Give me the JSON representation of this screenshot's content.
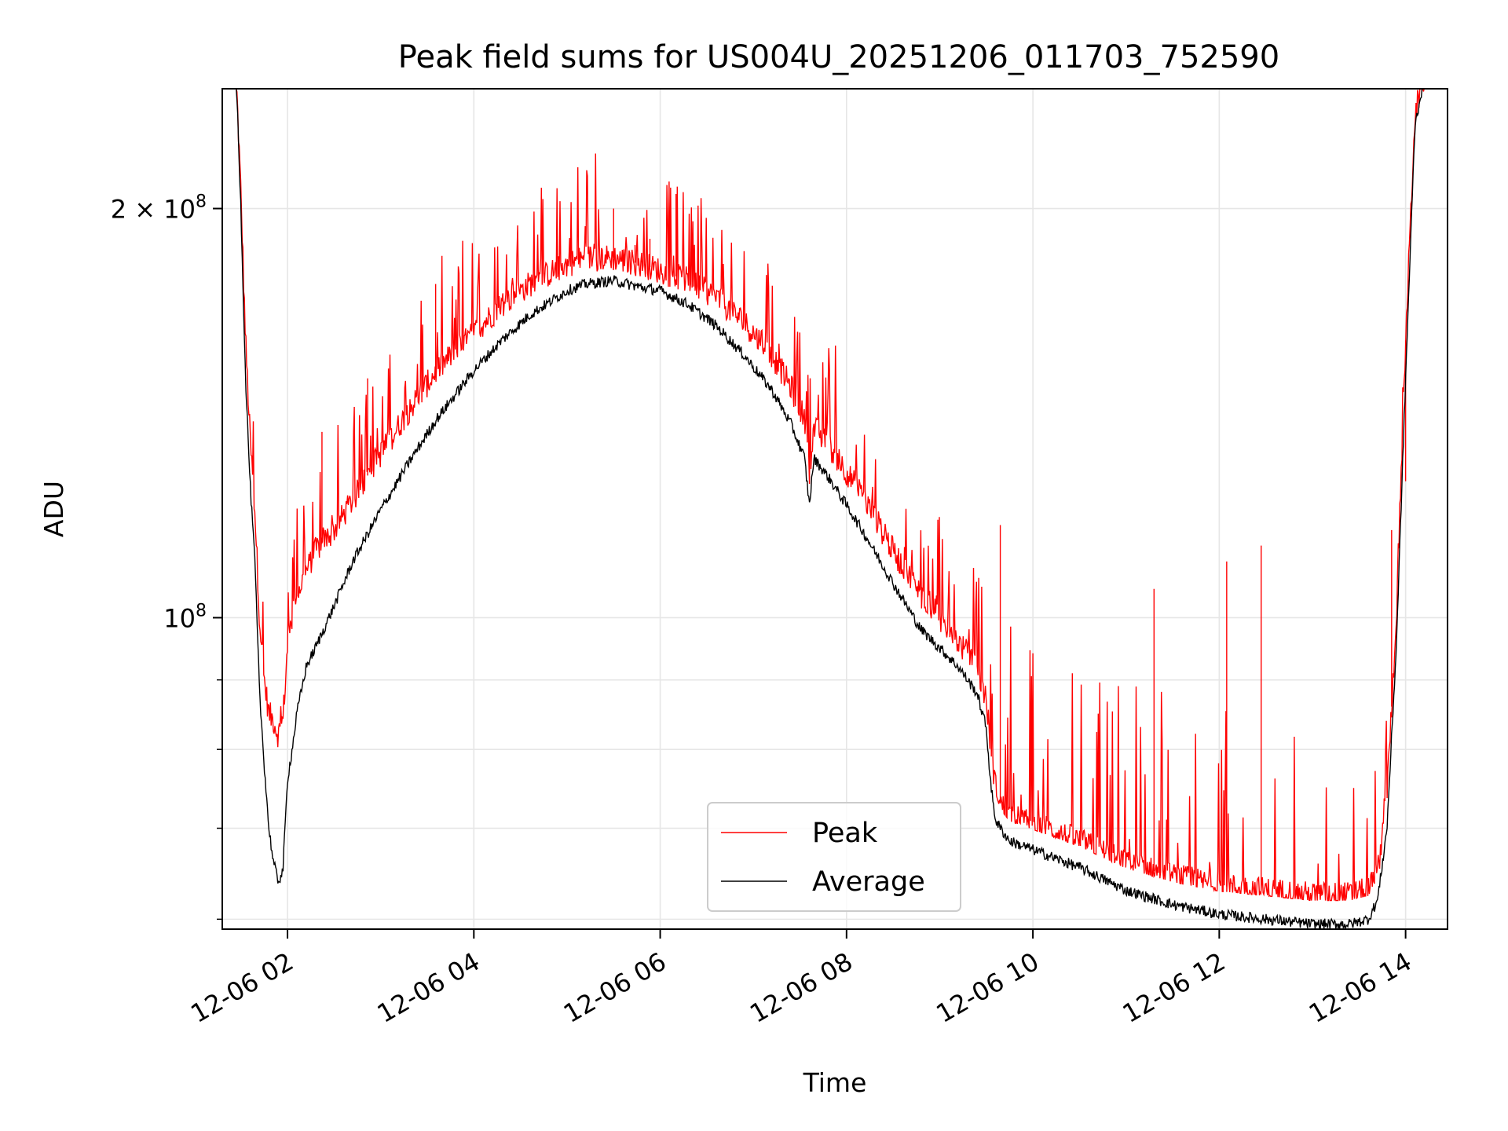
{
  "chart_data": {
    "type": "line",
    "title": "Peak field sums for US004U_20251206_011703_752590",
    "xlabel": "Time",
    "ylabel": "ADU",
    "yscale": "log",
    "ylim": [
      59000000,
      245000000
    ],
    "xlim_hours": [
      1.3,
      14.45
    ],
    "grid": true,
    "legend_position": "lower-center",
    "legend": [
      "Peak",
      "Average"
    ],
    "colors": {
      "peak": "#ff0000",
      "average": "#000000",
      "grid": "#e6e6e6"
    },
    "x_ticks": [
      {
        "hour": 2,
        "label": "12-06 02"
      },
      {
        "hour": 4,
        "label": "12-06 04"
      },
      {
        "hour": 6,
        "label": "12-06 06"
      },
      {
        "hour": 8,
        "label": "12-06 08"
      },
      {
        "hour": 10,
        "label": "12-06 10"
      },
      {
        "hour": 12,
        "label": "12-06 12"
      },
      {
        "hour": 14,
        "label": "12-06 14"
      }
    ],
    "y_major_ticks": [
      {
        "value": 100000000,
        "label_base": "10",
        "label_exp": "8"
      },
      {
        "value": 200000000,
        "label_base": "2 × 10",
        "label_exp": "8"
      }
    ],
    "y_minor_ticks": [
      60000000,
      70000000,
      80000000,
      90000000
    ],
    "series": [
      {
        "name": "Average",
        "x_hours": [
          1.45,
          1.5,
          1.55,
          1.6,
          1.65,
          1.7,
          1.75,
          1.8,
          1.85,
          1.9,
          1.95,
          2.0,
          2.05,
          2.1,
          2.2,
          2.3,
          2.5,
          2.7,
          3.0,
          3.3,
          3.6,
          4.0,
          4.3,
          4.6,
          5.0,
          5.2,
          5.5,
          5.8,
          6.0,
          6.3,
          6.6,
          6.9,
          7.2,
          7.4,
          7.55,
          7.6,
          7.65,
          7.8,
          8.0,
          8.2,
          8.5,
          8.8,
          9.0,
          9.2,
          9.4,
          9.5,
          9.55,
          9.6,
          9.65,
          9.75,
          10.0,
          10.5,
          11.0,
          11.5,
          12.0,
          12.5,
          13.0,
          13.4,
          13.6,
          13.7,
          13.8,
          13.9,
          14.0,
          14.1,
          14.2
        ],
        "values": [
          250000000,
          200000000,
          150000000,
          125000000,
          110000000,
          88000000,
          78000000,
          70000000,
          66000000,
          64000000,
          65000000,
          76000000,
          80000000,
          85000000,
          92000000,
          95000000,
          102000000,
          110000000,
          120000000,
          130000000,
          140000000,
          152000000,
          160000000,
          167000000,
          174000000,
          176000000,
          177000000,
          175000000,
          174000000,
          170000000,
          164000000,
          156000000,
          147000000,
          139000000,
          131000000,
          121000000,
          131000000,
          127000000,
          121000000,
          115000000,
          106000000,
          98000000,
          95000000,
          92000000,
          88000000,
          83000000,
          75000000,
          71000000,
          70000000,
          68500000,
          67500000,
          65500000,
          63000000,
          61500000,
          60500000,
          60000000,
          59500000,
          59500000,
          60000000,
          62000000,
          70000000,
          95000000,
          150000000,
          230000000,
          250000000
        ]
      },
      {
        "name": "Peak",
        "x_hours": [
          1.45,
          1.5,
          1.55,
          1.6,
          1.65,
          1.7,
          1.75,
          1.8,
          1.85,
          1.9,
          1.95,
          2.0,
          2.05,
          2.1,
          2.2,
          2.3,
          2.5,
          2.7,
          3.0,
          3.3,
          3.6,
          4.0,
          4.3,
          4.6,
          5.0,
          5.2,
          5.5,
          5.8,
          6.0,
          6.3,
          6.6,
          6.9,
          7.2,
          7.4,
          7.55,
          7.6,
          7.65,
          7.8,
          8.0,
          8.2,
          8.5,
          8.8,
          9.0,
          9.2,
          9.4,
          9.5,
          9.55,
          9.6,
          9.65,
          9.75,
          10.0,
          10.5,
          11.0,
          11.5,
          12.0,
          12.5,
          13.0,
          13.4,
          13.6,
          13.7,
          13.8,
          13.9,
          14.0,
          14.1,
          14.2
        ],
        "values": [
          250000000,
          205000000,
          160000000,
          135000000,
          120000000,
          100000000,
          90000000,
          85000000,
          84000000,
          82000000,
          84000000,
          95000000,
          100000000,
          104000000,
          108000000,
          112000000,
          116000000,
          122000000,
          132000000,
          142000000,
          152000000,
          162000000,
          170000000,
          176000000,
          182000000,
          184000000,
          184000000,
          182000000,
          180000000,
          177000000,
          172000000,
          165000000,
          156000000,
          148000000,
          140000000,
          128000000,
          138000000,
          134000000,
          128000000,
          122000000,
          112000000,
          104000000,
          100000000,
          96000000,
          92000000,
          87000000,
          80000000,
          75000000,
          73000000,
          71500000,
          70500000,
          68500000,
          66000000,
          64500000,
          63500000,
          63000000,
          62500000,
          62500000,
          63000000,
          65000000,
          74000000,
          100000000,
          160000000,
          235000000,
          250000000
        ]
      }
    ],
    "notable_peak_spikes": [
      {
        "hour": 5.5,
        "value": 200000000
      },
      {
        "hour": 6.17,
        "value": 205000000
      },
      {
        "hour": 5.89,
        "value": 190000000
      },
      {
        "hour": 5.73,
        "value": 188000000
      },
      {
        "hour": 3.59,
        "value": 176000000
      },
      {
        "hour": 2.37,
        "value": 137000000
      },
      {
        "hour": 2.86,
        "value": 150000000
      },
      {
        "hour": 9.65,
        "value": 117000000
      },
      {
        "hour": 12.45,
        "value": 113000000
      },
      {
        "hour": 12.08,
        "value": 110000000
      },
      {
        "hour": 11.3,
        "value": 105000000
      },
      {
        "hour": 13.85,
        "value": 116000000
      },
      {
        "hour": 14.0,
        "value": 126000000
      }
    ]
  }
}
